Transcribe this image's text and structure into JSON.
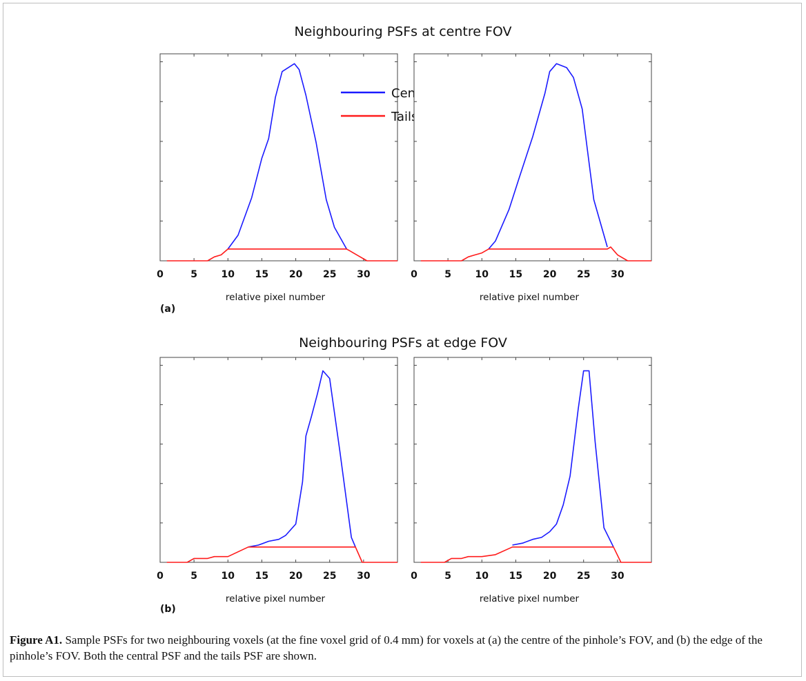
{
  "panel_a": {
    "title": "Neighbouring PSFs at centre FOV",
    "label": "(a)"
  },
  "panel_b": {
    "title": "Neighbouring PSFs at edge FOV",
    "label": "(b)"
  },
  "caption": {
    "label": "Figure A1.",
    "text": "Sample PSFs for two neighbouring voxels (at the fine voxel grid of 0.4 mm) for voxels at (a) the centre of the pinhole’s FOV, and (b) the edge of the pinhole’s FOV. Both the central PSF and the tails PSF are shown."
  },
  "colors": {
    "central": "#1a1aff",
    "tails": "#ff1a1a"
  },
  "chart_data": [
    {
      "type": "line",
      "xlabel": "relative pixel number",
      "xticks": [
        0,
        5,
        10,
        15,
        20,
        25,
        30
      ],
      "xlim": [
        0,
        35
      ],
      "ylim": [
        0,
        1.05
      ],
      "legend": {
        "position": "top-right",
        "entries": [
          "Central PSF",
          "Tails PSF"
        ]
      },
      "series": [
        {
          "name": "Central PSF",
          "x": [
            10,
            11.5,
            13.5,
            15,
            16,
            17,
            18,
            19.8,
            20.5,
            21.5,
            23,
            24.5,
            25.7,
            27.5
          ],
          "y": [
            0.06,
            0.13,
            0.32,
            0.52,
            0.62,
            0.83,
            0.96,
            1.0,
            0.97,
            0.84,
            0.6,
            0.31,
            0.17,
            0.06
          ]
        },
        {
          "name": "Tails PSF",
          "x": [
            1,
            7,
            8,
            9,
            10,
            27.5,
            28,
            29,
            30.5,
            35
          ],
          "y": [
            0,
            0,
            0.02,
            0.03,
            0.06,
            0.06,
            0.05,
            0.03,
            0,
            0
          ]
        }
      ]
    },
    {
      "type": "line",
      "xlabel": "relative pixel number",
      "xticks": [
        0,
        5,
        10,
        15,
        20,
        25,
        30
      ],
      "xlim": [
        0,
        35
      ],
      "ylim": [
        0,
        1.05
      ],
      "series": [
        {
          "name": "Central PSF",
          "x": [
            11,
            12,
            14,
            15.5,
            17.5,
            19.3,
            20,
            21,
            22.5,
            23.5,
            24.8,
            25.5,
            26.5,
            28.5
          ],
          "y": [
            0.06,
            0.1,
            0.26,
            0.42,
            0.63,
            0.85,
            0.96,
            1.0,
            0.98,
            0.93,
            0.77,
            0.58,
            0.31,
            0.07
          ]
        },
        {
          "name": "Tails PSF",
          "x": [
            1,
            7,
            8,
            9,
            10,
            11,
            28.5,
            29,
            30,
            31.5,
            35
          ],
          "y": [
            0,
            0,
            0.02,
            0.03,
            0.04,
            0.06,
            0.06,
            0.07,
            0.03,
            0,
            0
          ]
        }
      ]
    },
    {
      "type": "line",
      "xlabel": "relative pixel number",
      "xticks": [
        0,
        5,
        10,
        15,
        20,
        25,
        30
      ],
      "xlim": [
        0,
        35
      ],
      "ylim": [
        0,
        1.07
      ],
      "series": [
        {
          "name": "Central PSF",
          "x": [
            13,
            14.5,
            16,
            17.5,
            18.5,
            20,
            21,
            21.5,
            22.3,
            23.2,
            24,
            25,
            26.5,
            28.2,
            28.8
          ],
          "y": [
            0.08,
            0.09,
            0.11,
            0.12,
            0.14,
            0.2,
            0.42,
            0.66,
            0.76,
            0.88,
            1.0,
            0.96,
            0.58,
            0.13,
            0.08
          ]
        },
        {
          "name": "Tails PSF",
          "x": [
            1,
            4,
            5,
            7,
            8,
            9,
            10,
            13,
            28.8,
            29.8,
            35
          ],
          "y": [
            0,
            0,
            0.02,
            0.02,
            0.03,
            0.03,
            0.03,
            0.08,
            0.08,
            0,
            0
          ]
        }
      ]
    },
    {
      "type": "line",
      "xlabel": "relative pixel number",
      "xticks": [
        0,
        5,
        10,
        15,
        20,
        25,
        30
      ],
      "xlim": [
        0,
        35
      ],
      "ylim": [
        0,
        1.07
      ],
      "series": [
        {
          "name": "Central PSF",
          "x": [
            14.5,
            16,
            17.5,
            18.8,
            20,
            21,
            22,
            23,
            24.2,
            25,
            25.8,
            26.7,
            28,
            29.4
          ],
          "y": [
            0.09,
            0.1,
            0.12,
            0.13,
            0.16,
            0.2,
            0.3,
            0.45,
            0.8,
            1.0,
            1.0,
            0.63,
            0.18,
            0.08
          ]
        },
        {
          "name": "Tails PSF",
          "x": [
            1,
            4.5,
            5.5,
            7,
            8,
            10,
            12,
            14.5,
            29.4,
            30.5,
            35
          ],
          "y": [
            0,
            0,
            0.02,
            0.02,
            0.03,
            0.03,
            0.04,
            0.08,
            0.08,
            0,
            0
          ]
        }
      ]
    }
  ]
}
